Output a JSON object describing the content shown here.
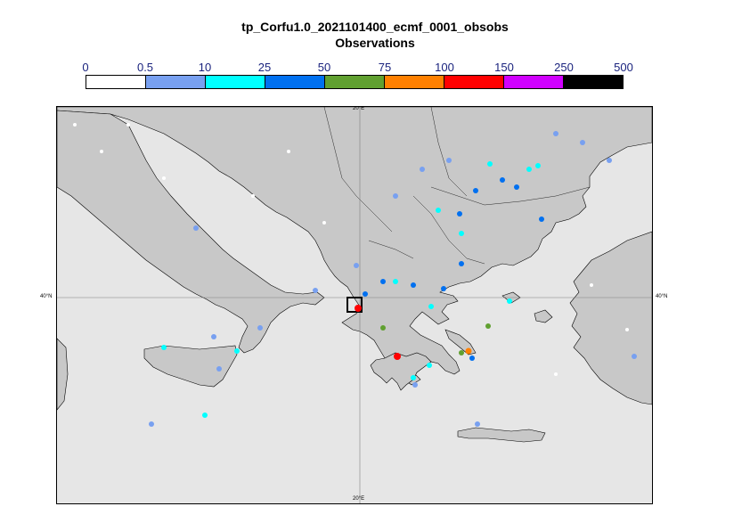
{
  "title": "tp_Corfu1.0_2021101400_ecmf_0001_obsobs",
  "subtitle": "Observations",
  "legend": {
    "labels": [
      "0",
      "0.5",
      "10",
      "25",
      "50",
      "75",
      "100",
      "150",
      "250",
      "500"
    ],
    "colors": [
      "#ffffff",
      "#78a0f0",
      "#00ffff",
      "#0070f0",
      "#60a030",
      "#ff8000",
      "#ff0000",
      "#d000ff",
      "#000000"
    ]
  },
  "axes": {
    "lon_label": "20°E",
    "lat_label": "40°N"
  },
  "colors": {
    "sea": "#e6e6e6",
    "land": "#c8c8c8",
    "coast": "#000000",
    "grid": "#808080"
  }
}
